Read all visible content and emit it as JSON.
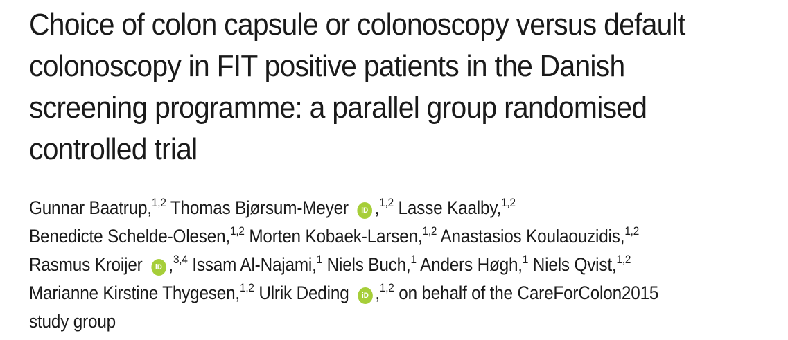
{
  "title_lines": [
    "Choice of colon capsule or colonoscopy versus default",
    "colonoscopy in FIT positive patients in the Danish",
    "screening programme: a parallel group randomised",
    "controlled trial"
  ],
  "orcid_icon_text": "iD",
  "authors": {
    "a1_name": "Gunnar Baatrup,",
    "a1_aff": "1,2",
    "a2_name": "Thomas Bjørsum-Meyer",
    "a2_sep": ",",
    "a2_aff": "1,2",
    "a3_name": "Lasse Kaalby,",
    "a3_aff": "1,2",
    "a4_name": "Benedicte Schelde-Olesen,",
    "a4_aff": "1,2",
    "a5_name": "Morten Kobaek-Larsen,",
    "a5_aff": "1,2",
    "a6_name": "Anastasios Koulaouzidis,",
    "a6_aff": "1,2",
    "a7_name": "Rasmus Kroijer",
    "a7_sep": ",",
    "a7_aff": "3,4",
    "a8_name": "Issam Al-Najami,",
    "a8_aff": "1",
    "a9_name": "Niels Buch,",
    "a9_aff": "1",
    "a10_name": "Anders Høgh,",
    "a10_aff": "1",
    "a11_name": "Niels Qvist,",
    "a11_aff": "1,2",
    "a12_name": "Marianne Kirstine Thygesen,",
    "a12_aff": "1,2",
    "a13_name": "Ulrik Deding",
    "a13_sep": ",",
    "a13_aff": "1,2",
    "group_text_1": "on behalf of the CareForColon2015",
    "group_text_2": "study group"
  },
  "colors": {
    "text": "#1a1a1a",
    "orcid": "#a6ce39"
  }
}
